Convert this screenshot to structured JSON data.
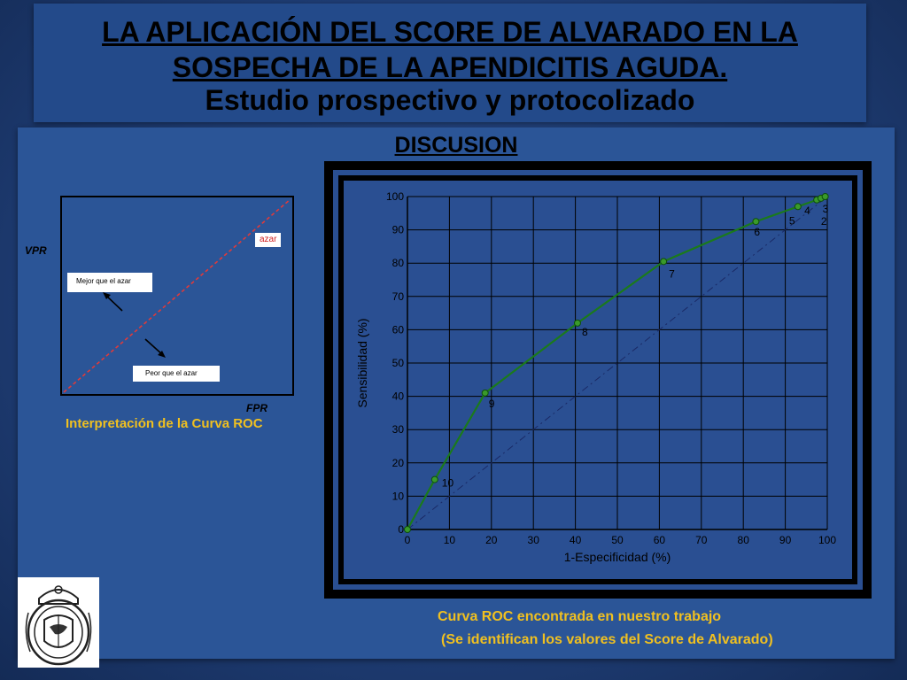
{
  "header": {
    "line1": "LA APLICACIÓN DEL SCORE DE ALVARADO EN LA",
    "line2": "SOSPECHA DE LA APENDICITIS AGUDA.",
    "line3": "Estudio prospectivo y protocolizado"
  },
  "section_title": "DISCUSION",
  "interpretation": {
    "ylabel": "VPR",
    "xlabel": "FPR",
    "azar_label": "azar",
    "better_label": "Mejor que el azar",
    "worse_label": "Peor que el azar",
    "caption": "Interpretación de la Curva ROC"
  },
  "captions": {
    "line1": "Curva ROC encontrada en nuestro trabajo",
    "line2": "(Se identifican los valores del Score de Alvarado)"
  },
  "colors": {
    "curve": "#1b7a1b",
    "marker": "#3a9a2a",
    "diagonal": "#1a2a66",
    "azar_line": "#e03a3a",
    "caption": "#f0c020"
  },
  "chart_data": {
    "type": "line",
    "xlabel": "1-Especificidad (%)",
    "ylabel": "Sensibilidad (%)",
    "xlim": [
      0,
      100
    ],
    "ylim": [
      0,
      100
    ],
    "xticks": [
      0,
      10,
      20,
      30,
      40,
      50,
      60,
      70,
      80,
      90,
      100
    ],
    "yticks": [
      0,
      10,
      20,
      30,
      40,
      50,
      60,
      70,
      80,
      90,
      100
    ],
    "grid": true,
    "reference_line": "diagonal",
    "points": [
      {
        "x": 0,
        "y": 0,
        "label": ""
      },
      {
        "x": 6.5,
        "y": 15,
        "label": "10"
      },
      {
        "x": 18.5,
        "y": 41,
        "label": "9"
      },
      {
        "x": 40.5,
        "y": 62,
        "label": "8"
      },
      {
        "x": 61,
        "y": 80.5,
        "label": "7"
      },
      {
        "x": 83,
        "y": 92.5,
        "label": "6"
      },
      {
        "x": 93,
        "y": 97,
        "label": "5"
      },
      {
        "x": 97.5,
        "y": 99,
        "label": "4"
      },
      {
        "x": 98.5,
        "y": 99.5,
        "label": "2"
      },
      {
        "x": 99.5,
        "y": 100,
        "label": "3"
      }
    ]
  }
}
